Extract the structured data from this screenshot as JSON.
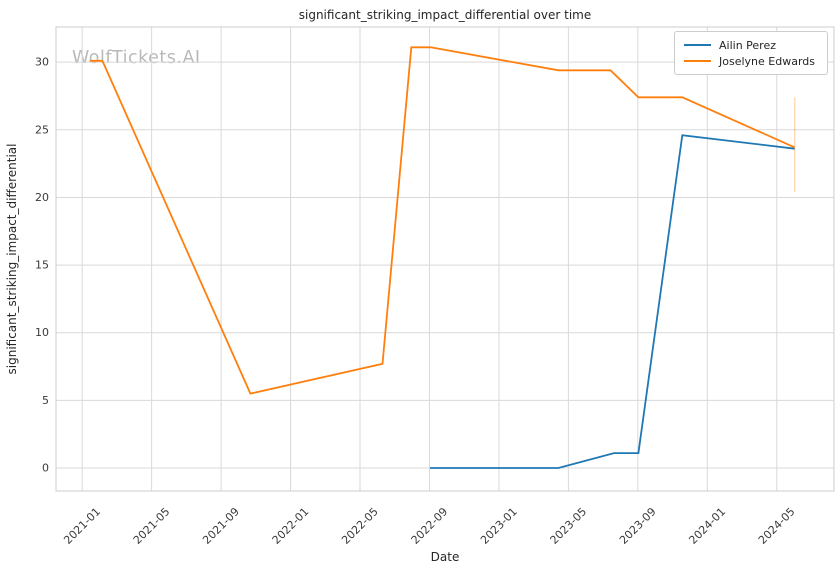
{
  "page": {
    "watermark": "WolfTickets.AI"
  },
  "chart_data": {
    "type": "line",
    "title": "significant_striking_impact_differential over time",
    "xlabel": "Date",
    "ylabel": "significant_striking_impact_differential",
    "grid": true,
    "legend_position": "upper right",
    "x_tick_labels": [
      "2021-01",
      "2021-05",
      "2021-09",
      "2022-01",
      "2022-05",
      "2022-09",
      "2023-01",
      "2023-05",
      "2023-09",
      "2024-01",
      "2024-05"
    ],
    "y_ticks": [
      0,
      5,
      10,
      15,
      20,
      25,
      30
    ],
    "xlim": [
      "2020-11-16",
      "2024-08-10"
    ],
    "ylim": [
      -1.7,
      32.6
    ],
    "grid_color": "#d9d9d9",
    "spine_color": "#cccccc",
    "tick_label_color": "#3a3a3a",
    "series": [
      {
        "name": "Ailin Perez",
        "color": "#1f77b4",
        "points": [
          {
            "date": "2022-09-02",
            "value": 0.0
          },
          {
            "date": "2023-04-14",
            "value": 0.0
          },
          {
            "date": "2023-07-20",
            "value": 1.1
          },
          {
            "date": "2023-09-02",
            "value": 1.1
          },
          {
            "date": "2023-11-18",
            "value": 24.6
          },
          {
            "date": "2024-06-02",
            "value": 23.6
          }
        ]
      },
      {
        "name": "Joselyne Edwards",
        "color": "#ff7f0e",
        "points": [
          {
            "date": "2021-01-14",
            "value": 30.1
          },
          {
            "date": "2021-02-06",
            "value": 30.1
          },
          {
            "date": "2021-10-22",
            "value": 5.5
          },
          {
            "date": "2022-06-10",
            "value": 7.7
          },
          {
            "date": "2022-07-30",
            "value": 31.1
          },
          {
            "date": "2022-09-03",
            "value": 31.1
          },
          {
            "date": "2023-04-14",
            "value": 29.4
          },
          {
            "date": "2023-07-14",
            "value": 29.4
          },
          {
            "date": "2023-09-02",
            "value": 27.4
          },
          {
            "date": "2023-11-18",
            "value": 27.4
          },
          {
            "date": "2024-06-02",
            "value": 23.7
          }
        ],
        "error_bar": {
          "date": "2024-06-02",
          "low": 20.4,
          "high": 27.4,
          "opacity": 0.3
        }
      }
    ]
  }
}
